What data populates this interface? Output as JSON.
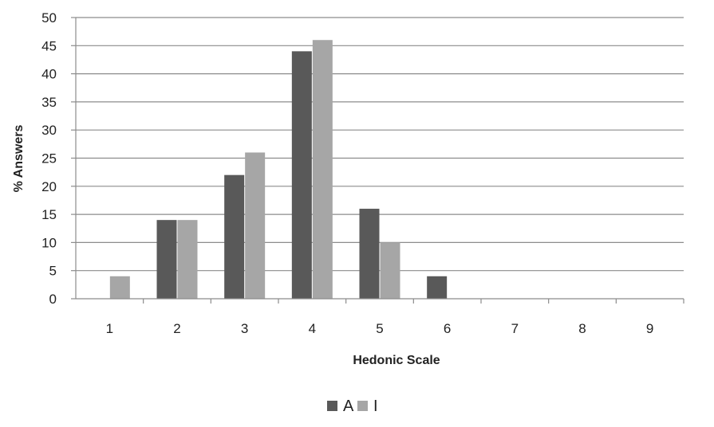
{
  "chart_data": {
    "type": "bar",
    "title": "",
    "xlabel": "Hedonic Scale",
    "ylabel": "% Answers",
    "categories": [
      "1",
      "2",
      "3",
      "4",
      "5",
      "6",
      "7",
      "8",
      "9"
    ],
    "ylim": [
      0,
      50
    ],
    "yticks": [
      "0",
      "5",
      "10",
      "15",
      "20",
      "25",
      "30",
      "35",
      "40",
      "45",
      "50"
    ],
    "grid": true,
    "legend_position": "bottom",
    "series": [
      {
        "name": "A",
        "values": [
          0,
          14,
          22,
          44,
          16,
          4,
          0,
          0,
          0
        ],
        "color": "#595959"
      },
      {
        "name": "I",
        "values": [
          4,
          14,
          26,
          46,
          10,
          0,
          0,
          0,
          0
        ],
        "color": "#a6a6a6"
      }
    ]
  }
}
